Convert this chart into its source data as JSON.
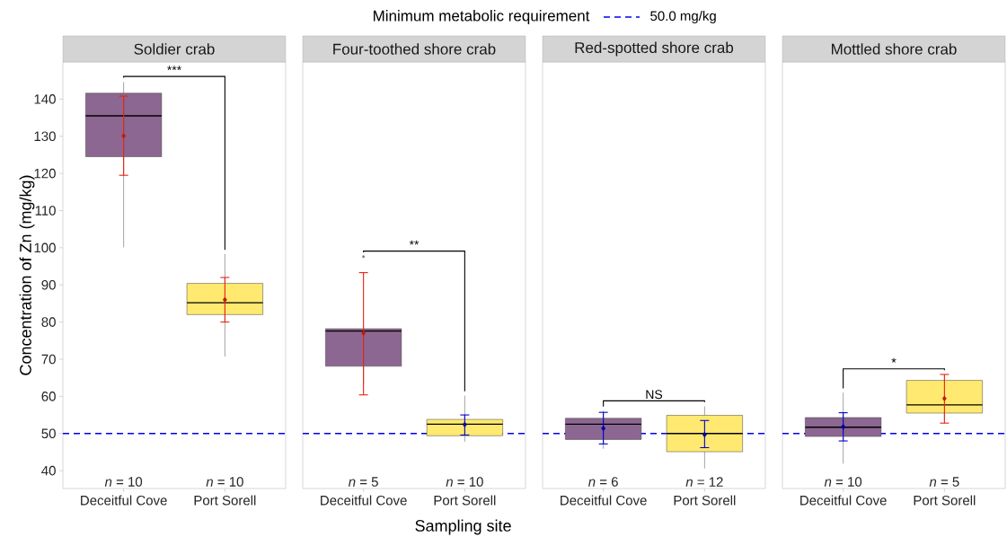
{
  "chart_data": [
    {
      "type": "box",
      "title": "Soldier crab",
      "ylabel": "Concentration of Zn (mg/kg)",
      "legend_title": "Minimum metabolic requirement",
      "legend": "top",
      "categories": [
        "Deceitful Cove",
        "Port Sorell"
      ],
      "colors": [
        "#8c6791",
        "#ffe970"
      ],
      "boxes": [
        {
          "low": 100.1,
          "q1": 124.5,
          "median": 135.5,
          "q3": 141.6,
          "high": 144.6
        },
        {
          "low": 70.7,
          "q1": 82.0,
          "median": 85.2,
          "q3": 90.4,
          "high": 98.3
        }
      ],
      "series": [
        {
          "type": "scatter",
          "marker": "diamond",
          "values": [
            130.1,
            86.0
          ],
          "errors": [
            [
              119.5,
              140.8
            ],
            [
              80.0,
              92.0
            ]
          ],
          "colors": [
            "#e8200f",
            "#e8200f"
          ]
        }
      ],
      "ylim": [
        35.2,
        150
      ],
      "yticks": [
        40,
        50,
        60,
        70,
        80,
        90,
        100,
        110,
        120,
        130,
        140
      ],
      "ref_lines": [
        {
          "axis": "y",
          "value": 50,
          "label": "50.0 mg/kg",
          "color": "#0000ee",
          "line_style": "dashed"
        }
      ],
      "annotations": [
        "***",
        "*n* = 10",
        "*n* = 10"
      ]
    },
    {
      "type": "box",
      "title": "Four-toothed shore crab",
      "xlabel": "Sampling site",
      "tick_labels": "x",
      "categories": [
        "Deceitful Cove",
        "Port Sorell"
      ],
      "colors": [
        "#8c6791",
        "#ffe970"
      ],
      "boxes": [
        {
          "low": 63.2,
          "q1": 68.1,
          "median": 77.6,
          "q3": 78.2,
          "high": 78.2,
          "outliers": [
            97.6
          ]
        },
        {
          "low": 47.8,
          "q1": 49.4,
          "median": 52.5,
          "q3": 53.8,
          "high": 60.2
        }
      ],
      "series": [
        {
          "type": "scatter",
          "marker": "diamond",
          "values": [
            77.0,
            52.4
          ],
          "errors": [
            [
              60.4,
              93.3
            ],
            [
              49.6,
              55.0
            ]
          ],
          "colors": [
            "#e8200f",
            "#0000cc"
          ]
        }
      ],
      "ylim": [
        35.2,
        150
      ],
      "ref_lines": [
        {
          "axis": "y",
          "value": 50,
          "color": "#0000ee",
          "line_style": "dashed"
        }
      ],
      "annotations": [
        "**",
        "*n* = 5",
        "*n* = 10"
      ]
    },
    {
      "type": "box",
      "title": "Red-spotted shore crab",
      "tick_labels": "x",
      "categories": [
        "Deceitful Cove",
        "Port Sorell"
      ],
      "colors": [
        "#8c6791",
        "#ffe970"
      ],
      "boxes": [
        {
          "low": 45.9,
          "q1": 48.4,
          "median": 52.5,
          "q3": 54.1,
          "high": 56.1
        },
        {
          "low": 40.6,
          "q1": 45.1,
          "median": 50.0,
          "q3": 54.9,
          "high": 57.3
        }
      ],
      "series": [
        {
          "type": "scatter",
          "marker": "diamond",
          "values": [
            51.4,
            49.7
          ],
          "errors": [
            [
              47.2,
              55.7
            ],
            [
              46.2,
              53.5
            ]
          ],
          "colors": [
            "#0000cc",
            "#0000cc"
          ]
        }
      ],
      "ylim": [
        35.2,
        150
      ],
      "ref_lines": [
        {
          "axis": "y",
          "value": 50,
          "color": "#0000ee",
          "line_style": "dashed"
        }
      ],
      "annotations": [
        "NS",
        "*n* = 6",
        "*n* = 12"
      ]
    },
    {
      "type": "box",
      "title": "Mottled shore crab",
      "tick_labels": "x",
      "categories": [
        "Deceitful Cove",
        "Port Sorell"
      ],
      "colors": [
        "#8c6791",
        "#ffe970"
      ],
      "boxes": [
        {
          "low": 41.9,
          "q1": 49.2,
          "median": 51.7,
          "q3": 54.3,
          "high": 61.0
        },
        {
          "low": 53.8,
          "q1": 55.5,
          "median": 57.7,
          "q3": 64.3,
          "high": 65.7
        }
      ],
      "series": [
        {
          "type": "scatter",
          "marker": "diamond",
          "values": [
            51.8,
            59.4
          ],
          "errors": [
            [
              48.0,
              55.6
            ],
            [
              52.8,
              65.9
            ]
          ],
          "colors": [
            "#0000cc",
            "#e8200f"
          ]
        }
      ],
      "ylim": [
        35.2,
        150
      ],
      "ref_lines": [
        {
          "axis": "y",
          "value": 50,
          "color": "#0000ee",
          "line_style": "dashed"
        }
      ],
      "annotations": [
        "*",
        "*n* = 10",
        "*n* = 5"
      ]
    }
  ]
}
